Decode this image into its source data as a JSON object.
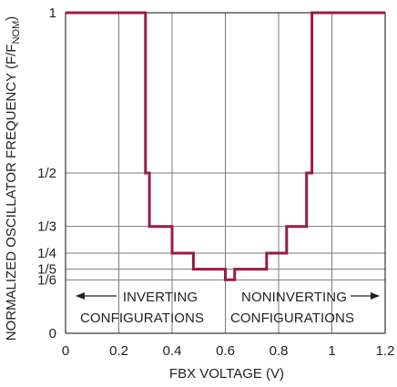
{
  "chart_data": {
    "type": "line",
    "xlabel": "FBX VOLTAGE (V)",
    "ylabel_main": "NORMALIZED OSCILLATOR FREQUENCY (F/F",
    "ylabel_sub": "NOM",
    "ylabel_close": ")",
    "xlim": [
      0,
      1.2
    ],
    "ylim": [
      0,
      1
    ],
    "x_ticks": [
      0,
      0.2,
      0.4,
      0.6,
      0.8,
      1.0,
      1.2
    ],
    "x_tick_labels": [
      "0",
      "0.2",
      "0.4",
      "0.6",
      "0.8",
      "1",
      "1.2"
    ],
    "y_ticks": [
      0,
      0.1667,
      0.2,
      0.25,
      0.3333,
      0.5,
      1
    ],
    "y_tick_labels": [
      "0",
      "1/6",
      "1/5",
      "1/4",
      "1/3",
      "1/2",
      "1"
    ],
    "grid": true,
    "series": [
      {
        "color": "#9b1b42",
        "step_points": [
          [
            0,
            1
          ],
          [
            0.3,
            1
          ],
          [
            0.3,
            0.5
          ],
          [
            0.315,
            0.5
          ],
          [
            0.315,
            0.3333
          ],
          [
            0.4,
            0.3333
          ],
          [
            0.4,
            0.25
          ],
          [
            0.48,
            0.25
          ],
          [
            0.48,
            0.2
          ],
          [
            0.6,
            0.2
          ],
          [
            0.6,
            0.1667
          ],
          [
            0.635,
            0.1667
          ],
          [
            0.635,
            0.2
          ],
          [
            0.755,
            0.2
          ],
          [
            0.755,
            0.25
          ],
          [
            0.83,
            0.25
          ],
          [
            0.83,
            0.3333
          ],
          [
            0.905,
            0.3333
          ],
          [
            0.905,
            0.5
          ],
          [
            0.925,
            0.5
          ],
          [
            0.925,
            1
          ],
          [
            1.2,
            1
          ]
        ]
      }
    ],
    "annotations": {
      "left_line1": "INVERTING",
      "left_line2": "CONFIGURATIONS",
      "right_line1": "NONINVERTING",
      "right_line2": "CONFIGURATIONS"
    }
  }
}
